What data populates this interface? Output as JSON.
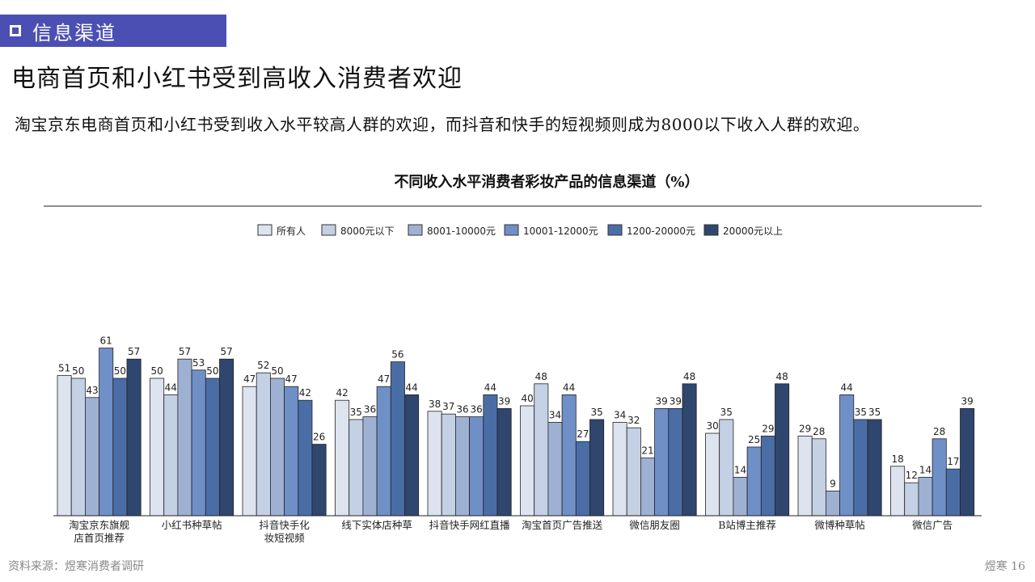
{
  "section": {
    "label": "信息渠道"
  },
  "headline": "电商首页和小红书受到高收入消费者欢迎",
  "subtitle": "淘宝京东电商首页和小红书受到收入水平较高人群的欢迎，而抖音和快手的短视频则成为8000以下收入人群的欢迎。",
  "footer": {
    "source": "资料来源：煜寒消费者调研",
    "page": "煜寒 16"
  },
  "chart_data": {
    "type": "bar",
    "title": "不同收入水平消费者彩妆产品的信息渠道（%）",
    "legend_position": "top-center",
    "ylim": [
      0,
      65
    ],
    "grid": false,
    "categories": [
      [
        "淘宝京东旗舰",
        "店首页推荐"
      ],
      [
        "小红书种草帖"
      ],
      [
        "抖音快手化",
        "妆短视频"
      ],
      [
        "线下实体店种草"
      ],
      [
        "抖音快手网红直播"
      ],
      [
        "淘宝首页广告推送"
      ],
      [
        "微信朋友圈"
      ],
      [
        "B站博主推荐"
      ],
      [
        "微博种草帖"
      ],
      [
        "微信广告"
      ]
    ],
    "series": [
      {
        "name": "所有人",
        "color": "#dde3ef",
        "values": [
          51,
          50,
          47,
          42,
          38,
          40,
          34,
          30,
          29,
          18
        ]
      },
      {
        "name": "8000元以下",
        "color": "#c4d0e4",
        "values": [
          50,
          44,
          52,
          35,
          37,
          48,
          32,
          35,
          28,
          12
        ]
      },
      {
        "name": "8001-10000元",
        "color": "#9fb1d2",
        "values": [
          43,
          57,
          50,
          36,
          36,
          34,
          21,
          14,
          9,
          14
        ]
      },
      {
        "name": "10001-12000元",
        "color": "#6f8fc7",
        "values": [
          61,
          53,
          47,
          47,
          36,
          44,
          39,
          25,
          44,
          28
        ]
      },
      {
        "name": "1200-20000元",
        "color": "#4a6da6",
        "values": [
          50,
          50,
          42,
          56,
          44,
          27,
          39,
          29,
          35,
          17
        ]
      },
      {
        "name": "20000元以上",
        "color": "#2f466f",
        "values": [
          57,
          57,
          26,
          44,
          39,
          35,
          48,
          48,
          35,
          39
        ]
      }
    ]
  }
}
